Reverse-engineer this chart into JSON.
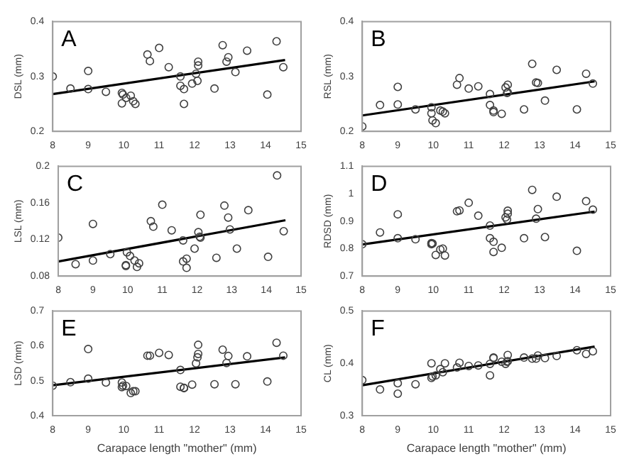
{
  "chart_data": [
    {
      "type": "scatter",
      "title": "A",
      "ylabel": "DSL (mm)",
      "xlim": [
        8,
        15
      ],
      "xticks": [
        8,
        9,
        10,
        11,
        12,
        13,
        14,
        15
      ],
      "ylim": [
        0.2,
        0.4
      ],
      "yticks": [
        0.2,
        0.3,
        0.4
      ],
      "series": [
        {
          "x": [
            8.0,
            8.5,
            9.0,
            9.0,
            9.5,
            9.95,
            9.95,
            9.98,
            10.07,
            10.2,
            10.27,
            10.33,
            10.67,
            10.74,
            11.0,
            11.27,
            11.6,
            11.6,
            11.7,
            11.7,
            11.93,
            12.04,
            12.1,
            12.1,
            12.08,
            12.56,
            12.79,
            12.9,
            12.95,
            13.15,
            13.48,
            14.05,
            14.31,
            14.5
          ],
          "values": [
            0.3,
            0.278,
            0.31,
            0.277,
            0.272,
            0.27,
            0.251,
            0.267,
            0.261,
            0.265,
            0.255,
            0.25,
            0.34,
            0.328,
            0.352,
            0.317,
            0.3,
            0.283,
            0.277,
            0.25,
            0.287,
            0.305,
            0.327,
            0.32,
            0.292,
            0.278,
            0.357,
            0.327,
            0.335,
            0.308,
            0.347,
            0.267,
            0.364,
            0.317
          ],
          "color": "#404040",
          "marker": "circle"
        },
        {
          "type": "line",
          "x": [
            8.0,
            14.55
          ],
          "values": [
            0.268,
            0.33
          ],
          "color": "#000000",
          "marker": "none"
        }
      ]
    },
    {
      "type": "scatter",
      "title": "B",
      "ylabel": "RSL (mm)",
      "xlim": [
        8,
        15
      ],
      "xticks": [
        8,
        9,
        10,
        11,
        12,
        13,
        14,
        15
      ],
      "ylim": [
        0.2,
        0.4
      ],
      "yticks": [
        0.2,
        0.3,
        0.4
      ],
      "series": [
        {
          "x": [
            8.0,
            8.5,
            9.0,
            9.0,
            9.5,
            9.95,
            9.95,
            9.98,
            10.07,
            10.2,
            10.27,
            10.33,
            10.67,
            10.74,
            11.0,
            11.27,
            11.6,
            11.6,
            11.7,
            11.7,
            11.93,
            12.04,
            12.1,
            12.1,
            12.08,
            12.56,
            12.79,
            12.9,
            12.95,
            13.15,
            13.48,
            14.05,
            14.31,
            14.5
          ],
          "values": [
            0.209,
            0.248,
            0.281,
            0.249,
            0.24,
            0.244,
            0.233,
            0.22,
            0.215,
            0.238,
            0.236,
            0.233,
            0.285,
            0.297,
            0.278,
            0.282,
            0.268,
            0.248,
            0.238,
            0.235,
            0.232,
            0.28,
            0.285,
            0.271,
            0.27,
            0.24,
            0.323,
            0.289,
            0.288,
            0.256,
            0.312,
            0.24,
            0.305,
            0.287
          ],
          "color": "#404040",
          "marker": "circle"
        },
        {
          "type": "line",
          "x": [
            8.0,
            14.55
          ],
          "values": [
            0.229,
            0.291
          ],
          "color": "#000000",
          "marker": "none"
        }
      ]
    },
    {
      "type": "scatter",
      "title": "C",
      "ylabel": "LSL (mm)",
      "xlim": [
        8,
        15
      ],
      "xticks": [
        8,
        9,
        10,
        11,
        12,
        13,
        14,
        15
      ],
      "ylim": [
        0.08,
        0.2
      ],
      "yticks": [
        0.08,
        0.12,
        0.16,
        0.2
      ],
      "series": [
        {
          "x": [
            8.0,
            8.5,
            9.0,
            9.0,
            9.5,
            9.95,
            9.95,
            9.98,
            10.07,
            10.2,
            10.27,
            10.33,
            10.67,
            10.74,
            11.0,
            11.27,
            11.6,
            11.6,
            11.7,
            11.7,
            11.93,
            12.04,
            12.1,
            12.1,
            12.08,
            12.56,
            12.79,
            12.9,
            12.95,
            13.15,
            13.48,
            14.05,
            14.31,
            14.5
          ],
          "values": [
            0.122,
            0.093,
            0.137,
            0.097,
            0.104,
            0.092,
            0.091,
            0.106,
            0.102,
            0.097,
            0.09,
            0.094,
            0.14,
            0.134,
            0.158,
            0.13,
            0.119,
            0.096,
            0.099,
            0.089,
            0.11,
            0.128,
            0.147,
            0.122,
            0.123,
            0.1,
            0.157,
            0.144,
            0.131,
            0.11,
            0.152,
            0.101,
            0.19,
            0.129
          ],
          "color": "#404040",
          "marker": "circle"
        },
        {
          "type": "line",
          "x": [
            8.0,
            14.55
          ],
          "values": [
            0.096,
            0.141
          ],
          "color": "#000000",
          "marker": "none"
        }
      ]
    },
    {
      "type": "scatter",
      "title": "D",
      "ylabel": "RDSD (mm)",
      "xlim": [
        8,
        15
      ],
      "xticks": [
        8,
        9,
        10,
        11,
        12,
        13,
        14,
        15
      ],
      "ylim": [
        0.7,
        1.1
      ],
      "yticks": [
        0.7,
        0.8,
        0.9,
        1,
        1.1
      ],
      "series": [
        {
          "x": [
            8.0,
            8.5,
            9.0,
            9.0,
            9.5,
            9.95,
            9.95,
            9.98,
            10.07,
            10.2,
            10.27,
            10.33,
            10.67,
            10.74,
            11.0,
            11.27,
            11.6,
            11.6,
            11.7,
            11.7,
            11.93,
            12.04,
            12.1,
            12.1,
            12.08,
            12.56,
            12.79,
            12.9,
            12.95,
            13.15,
            13.48,
            14.05,
            14.31,
            14.5
          ],
          "values": [
            0.816,
            0.859,
            0.925,
            0.838,
            0.834,
            0.82,
            0.816,
            0.819,
            0.777,
            0.797,
            0.8,
            0.775,
            0.936,
            0.939,
            0.967,
            0.92,
            0.884,
            0.838,
            0.825,
            0.788,
            0.803,
            0.914,
            0.938,
            0.927,
            0.906,
            0.838,
            1.014,
            0.909,
            0.944,
            0.842,
            0.989,
            0.792,
            0.973,
            0.942
          ],
          "color": "#404040",
          "marker": "circle"
        },
        {
          "type": "line",
          "x": [
            8.0,
            14.55
          ],
          "values": [
            0.815,
            0.935
          ],
          "color": "#000000",
          "marker": "none"
        }
      ]
    },
    {
      "type": "scatter",
      "title": "E",
      "xlabel": "Carapace length \"mother\" (mm)",
      "ylabel": "LSD (mm)",
      "xlim": [
        8,
        15
      ],
      "xticks": [
        8,
        9,
        10,
        11,
        12,
        13,
        14,
        15
      ],
      "ylim": [
        0.4,
        0.7
      ],
      "yticks": [
        0.4,
        0.5,
        0.6,
        0.7
      ],
      "series": [
        {
          "x": [
            8.0,
            8.5,
            9.0,
            9.0,
            9.5,
            9.95,
            9.95,
            9.98,
            10.07,
            10.2,
            10.27,
            10.33,
            10.67,
            10.74,
            11.0,
            11.27,
            11.6,
            11.6,
            11.7,
            11.7,
            11.93,
            12.04,
            12.1,
            12.1,
            12.08,
            12.56,
            12.79,
            12.9,
            12.95,
            13.15,
            13.48,
            14.05,
            14.31,
            14.5
          ],
          "values": [
            0.486,
            0.496,
            0.591,
            0.506,
            0.495,
            0.495,
            0.482,
            0.486,
            0.485,
            0.465,
            0.47,
            0.47,
            0.572,
            0.572,
            0.58,
            0.574,
            0.531,
            0.483,
            0.48,
            0.479,
            0.489,
            0.55,
            0.603,
            0.577,
            0.567,
            0.49,
            0.589,
            0.551,
            0.571,
            0.49,
            0.57,
            0.498,
            0.609,
            0.572
          ],
          "color": "#404040",
          "marker": "circle"
        },
        {
          "type": "line",
          "x": [
            8.0,
            14.55
          ],
          "values": [
            0.487,
            0.567
          ],
          "color": "#000000",
          "marker": "none"
        }
      ]
    },
    {
      "type": "scatter",
      "title": "F",
      "xlabel": "Carapace length \"mother\" (mm)",
      "ylabel": "CL (mm)",
      "xlim": [
        8,
        15
      ],
      "xticks": [
        8,
        9,
        10,
        11,
        12,
        13,
        14,
        15
      ],
      "ylim": [
        0.3,
        0.5
      ],
      "yticks": [
        0.3,
        0.4,
        0.5
      ],
      "series": [
        {
          "x": [
            8.0,
            8.5,
            9.0,
            9.0,
            9.5,
            9.95,
            9.95,
            9.98,
            10.07,
            10.2,
            10.27,
            10.33,
            10.67,
            10.74,
            11.0,
            11.27,
            11.6,
            11.6,
            11.7,
            11.7,
            11.93,
            12.04,
            12.1,
            12.1,
            12.08,
            12.56,
            12.79,
            12.9,
            12.95,
            13.15,
            13.48,
            14.05,
            14.31,
            14.5
          ],
          "values": [
            0.368,
            0.35,
            0.362,
            0.342,
            0.36,
            0.4,
            0.372,
            0.375,
            0.377,
            0.389,
            0.383,
            0.4,
            0.392,
            0.401,
            0.395,
            0.396,
            0.377,
            0.399,
            0.411,
            0.41,
            0.403,
            0.399,
            0.416,
            0.404,
            0.403,
            0.411,
            0.409,
            0.409,
            0.415,
            0.41,
            0.414,
            0.425,
            0.418,
            0.423
          ],
          "color": "#404040",
          "marker": "circle"
        },
        {
          "type": "line",
          "x": [
            8.0,
            14.55
          ],
          "values": [
            0.358,
            0.432
          ],
          "color": "#000000",
          "marker": "none"
        }
      ]
    }
  ]
}
